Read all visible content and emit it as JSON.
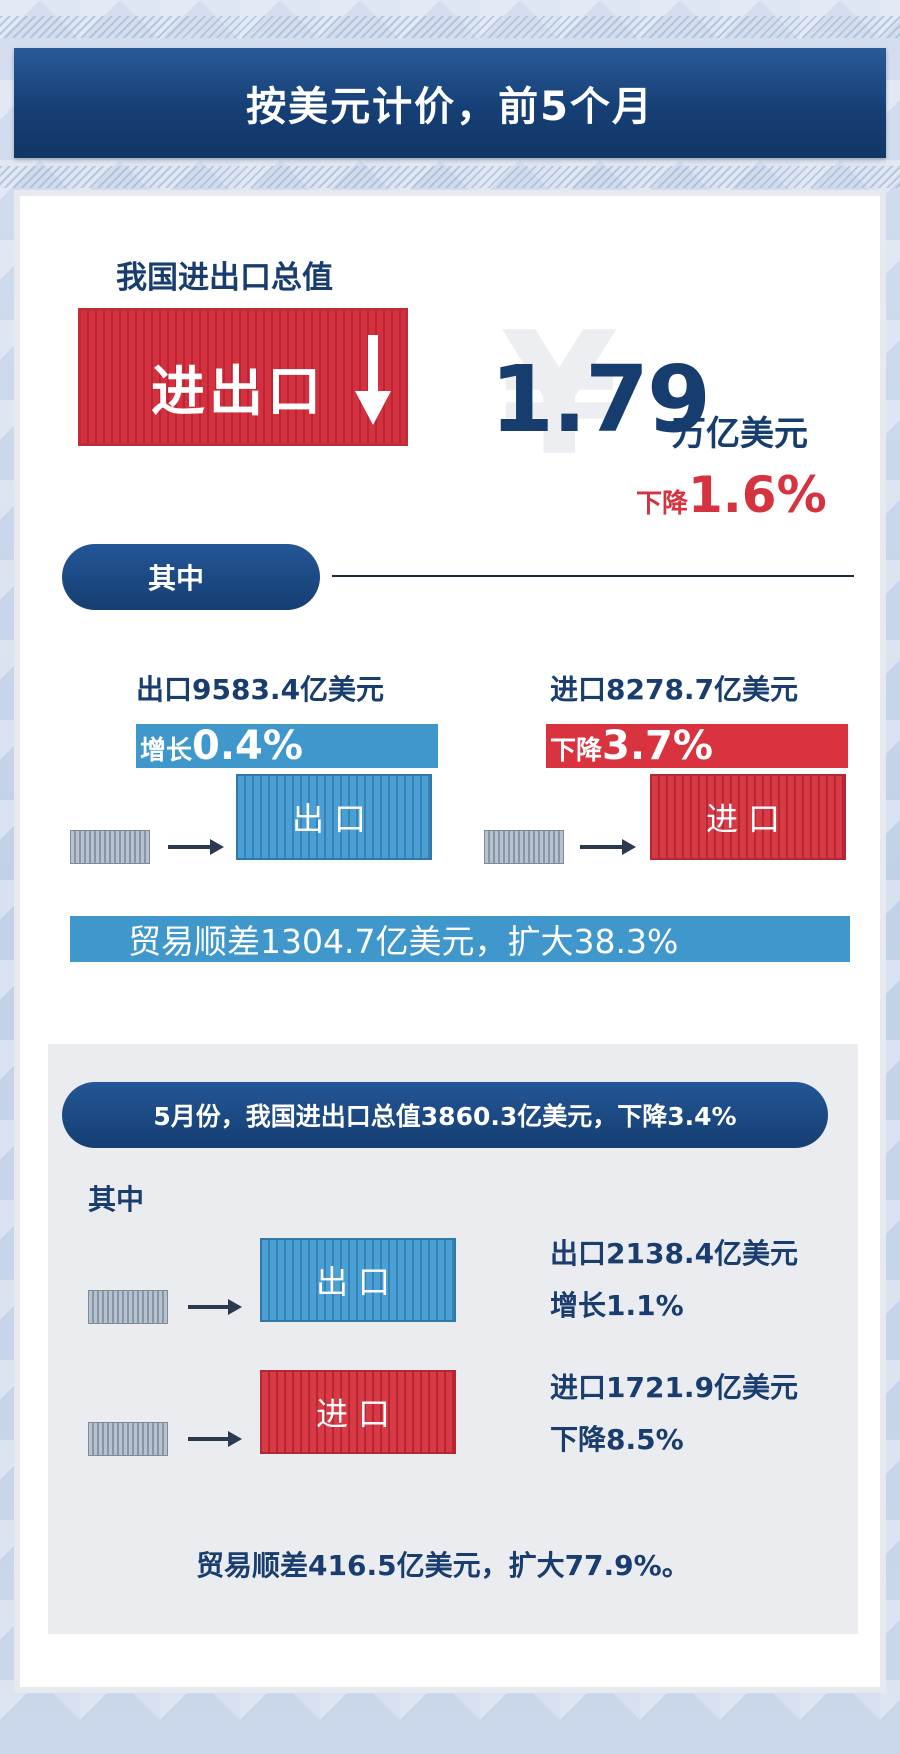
{
  "header": {
    "title": "按美元计价，前5个月"
  },
  "total": {
    "label": "我国进出口总值",
    "box_label": "进出口",
    "watermark": "¥",
    "value": "1.79",
    "unit": "万亿美元",
    "change_prefix": "下降",
    "change_value": "1.6%"
  },
  "breakdown": {
    "pill_label": "其中",
    "export": {
      "label": "出口9583.4亿美元",
      "change_prefix": "增长",
      "change_value": "0.4%",
      "container_label": "出口"
    },
    "import": {
      "label": "进口8278.7亿美元",
      "change_prefix": "下降",
      "change_value": "3.7%",
      "container_label": "进口"
    },
    "surplus": "贸易顺差1304.7亿美元，扩大38.3%"
  },
  "may": {
    "pill_label": "5月份，我国进出口总值3860.3亿美元，下降3.4%",
    "qizhong": "其中",
    "export": {
      "container_label": "出口",
      "line1": "出口2138.4亿美元",
      "line2": "增长1.1%"
    },
    "import": {
      "container_label": "进口",
      "line1": "进口1721.9亿美元",
      "line2": "下降8.5%"
    },
    "surplus": "贸易顺差416.5亿美元，扩大77.9%。"
  },
  "icons": [
    "down-arrow-icon",
    "right-arrow-icon",
    "container-icon"
  ],
  "colors": {
    "navy": "#173c6e",
    "red": "#d5333f",
    "blue": "#3f97cc"
  }
}
